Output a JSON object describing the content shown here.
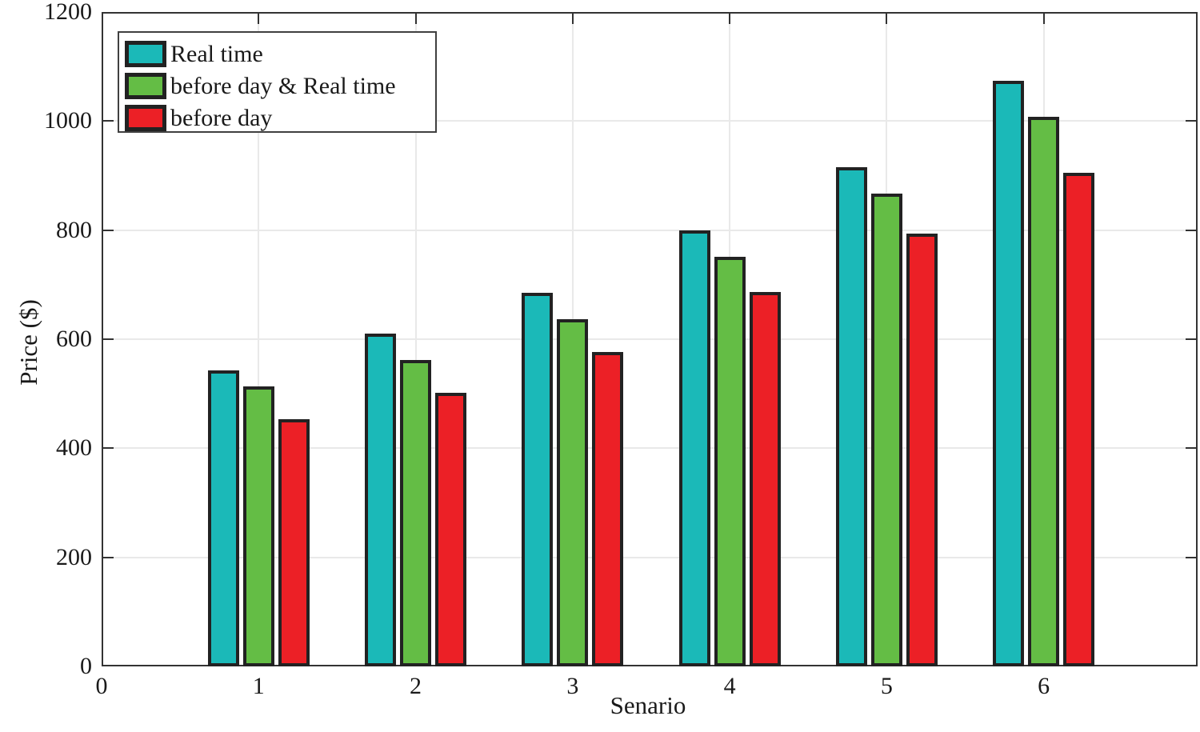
{
  "chart_data": {
    "type": "bar",
    "title": "",
    "xlabel": "Senario",
    "ylabel": "Price ($)",
    "categories": [
      1,
      2,
      3,
      4,
      5,
      6
    ],
    "series": [
      {
        "name": "Real time",
        "color": "#1bb9b8",
        "values": [
          543,
          610,
          685,
          800,
          916,
          1074
        ]
      },
      {
        "name": "before day & Real time",
        "color": "#64bd45",
        "values": [
          514,
          562,
          637,
          751,
          867,
          1008
        ]
      },
      {
        "name": "before day",
        "color": "#ec2026",
        "values": [
          453,
          502,
          576,
          686,
          794,
          905
        ]
      }
    ],
    "xlim": [
      0,
      6.98
    ],
    "ylim": [
      0,
      1200
    ],
    "xticks": [
      0,
      1,
      2,
      3,
      4,
      5,
      6
    ],
    "yticks": [
      0,
      200,
      400,
      600,
      800,
      1000,
      1200
    ],
    "xticklabels": [
      "0",
      "1",
      "2",
      "3",
      "4",
      "5",
      "6"
    ],
    "yticklabels": [
      "0",
      "200",
      "400",
      "600",
      "800",
      "1000",
      "1200"
    ],
    "grid": true,
    "grid_color": "#e9e9e9",
    "axis_color": "#333333",
    "bar_border_color": "#222222",
    "text_color": "#1a1a1a",
    "legend_position": "top-left",
    "legend_entries": [
      "Real time",
      "before day & Real time",
      "before day"
    ]
  }
}
